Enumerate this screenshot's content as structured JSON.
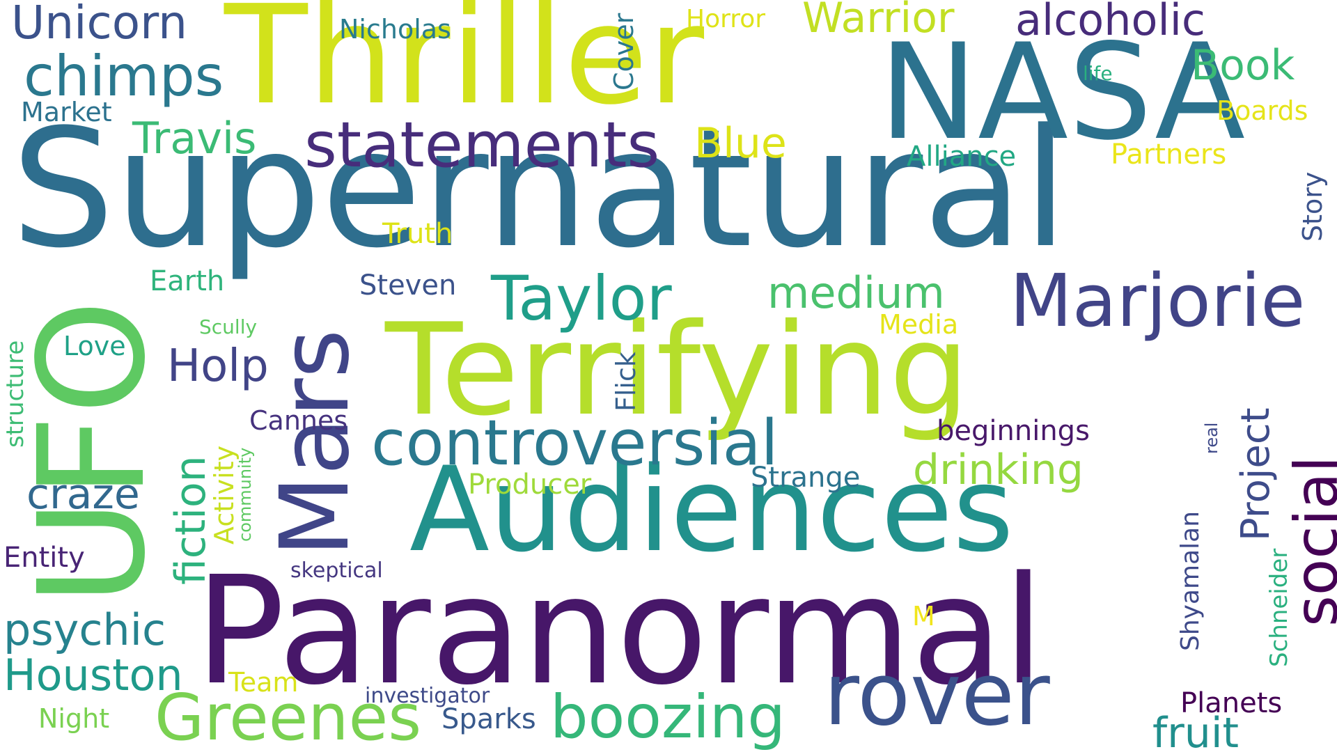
{
  "words": [
    {
      "text": "Supernatural",
      "color": "#2e6e8e"
    },
    {
      "text": "Paranormal",
      "color": "#471769"
    },
    {
      "text": "Terrifying",
      "color": "#b5de2b"
    },
    {
      "text": "Thriller",
      "color": "#d2e21b"
    },
    {
      "text": "NASA",
      "color": "#2c728e"
    },
    {
      "text": "UFO",
      "color": "#5ec962"
    },
    {
      "text": "Mars",
      "color": "#404588"
    },
    {
      "text": "Audiences",
      "color": "#21918c"
    },
    {
      "text": "rover",
      "color": "#3b528b"
    },
    {
      "text": "Marjorie",
      "color": "#414487"
    },
    {
      "text": "statements",
      "color": "#472d7b"
    },
    {
      "text": "controversial",
      "color": "#2a788e"
    },
    {
      "text": "Taylor",
      "color": "#1f9e89"
    },
    {
      "text": "Greenes",
      "color": "#7ad151"
    },
    {
      "text": "boozing",
      "color": "#35b779"
    },
    {
      "text": "social",
      "color": "#440154"
    },
    {
      "text": "chimps",
      "color": "#2a788e"
    },
    {
      "text": "Unicorn",
      "color": "#3b528b"
    },
    {
      "text": "Warrior",
      "color": "#c2df23"
    },
    {
      "text": "alcoholic",
      "color": "#472c7a"
    },
    {
      "text": "Book",
      "color": "#3bbb75"
    },
    {
      "text": "Travis",
      "color": "#3bbb75"
    },
    {
      "text": "Blue",
      "color": "#dde318"
    },
    {
      "text": "medium",
      "color": "#4ac16d"
    },
    {
      "text": "drinking",
      "color": "#95d840"
    },
    {
      "text": "Project",
      "color": "#3e4c8a"
    },
    {
      "text": "Holp",
      "color": "#414487"
    },
    {
      "text": "fiction",
      "color": "#2db27d"
    },
    {
      "text": "craze",
      "color": "#31688e"
    },
    {
      "text": "psychic",
      "color": "#26828e"
    },
    {
      "text": "Houston",
      "color": "#1f9a8a"
    },
    {
      "text": "fruit",
      "color": "#218f8d"
    },
    {
      "text": "Shyamalan",
      "color": "#3e4989"
    },
    {
      "text": "Schneider",
      "color": "#2ab07f"
    },
    {
      "text": "Nicholas",
      "color": "#297b8e"
    },
    {
      "text": "Cover",
      "color": "#2a778e"
    },
    {
      "text": "Horror",
      "color": "#dfe318"
    },
    {
      "text": "Market",
      "color": "#2c728e"
    },
    {
      "text": "life",
      "color": "#2ab07f"
    },
    {
      "text": "Boards",
      "color": "#e5e419"
    },
    {
      "text": "Alliance",
      "color": "#22a884"
    },
    {
      "text": "Partners",
      "color": "#eae51a"
    },
    {
      "text": "Story",
      "color": "#3b528b"
    },
    {
      "text": "Truth",
      "color": "#dde318"
    },
    {
      "text": "Earth",
      "color": "#2fb47c"
    },
    {
      "text": "Steven",
      "color": "#3b528b"
    },
    {
      "text": "structure",
      "color": "#3dbc74"
    },
    {
      "text": "Scully",
      "color": "#5ec962"
    },
    {
      "text": "Media",
      "color": "#e5e419"
    },
    {
      "text": "Love",
      "color": "#1fa187"
    },
    {
      "text": "Flick",
      "color": "#355f8d"
    },
    {
      "text": "Activity",
      "color": "#c8e020"
    },
    {
      "text": "community",
      "color": "#5ec962"
    },
    {
      "text": "Cannes",
      "color": "#46327e"
    },
    {
      "text": "beginnings",
      "color": "#48186a"
    },
    {
      "text": "real",
      "color": "#3e4989"
    },
    {
      "text": "Strange",
      "color": "#2c738e"
    },
    {
      "text": "Producer",
      "color": "#9fda3a"
    },
    {
      "text": "Entity",
      "color": "#482475"
    },
    {
      "text": "skeptical",
      "color": "#453781"
    },
    {
      "text": "M",
      "color": "#f1e51d"
    },
    {
      "text": "Team",
      "color": "#d8e219"
    },
    {
      "text": "investigator",
      "color": "#3e4a89"
    },
    {
      "text": "Night",
      "color": "#7ad151"
    },
    {
      "text": "Sparks",
      "color": "#38598c"
    },
    {
      "text": "Planets",
      "color": "#440154"
    }
  ]
}
